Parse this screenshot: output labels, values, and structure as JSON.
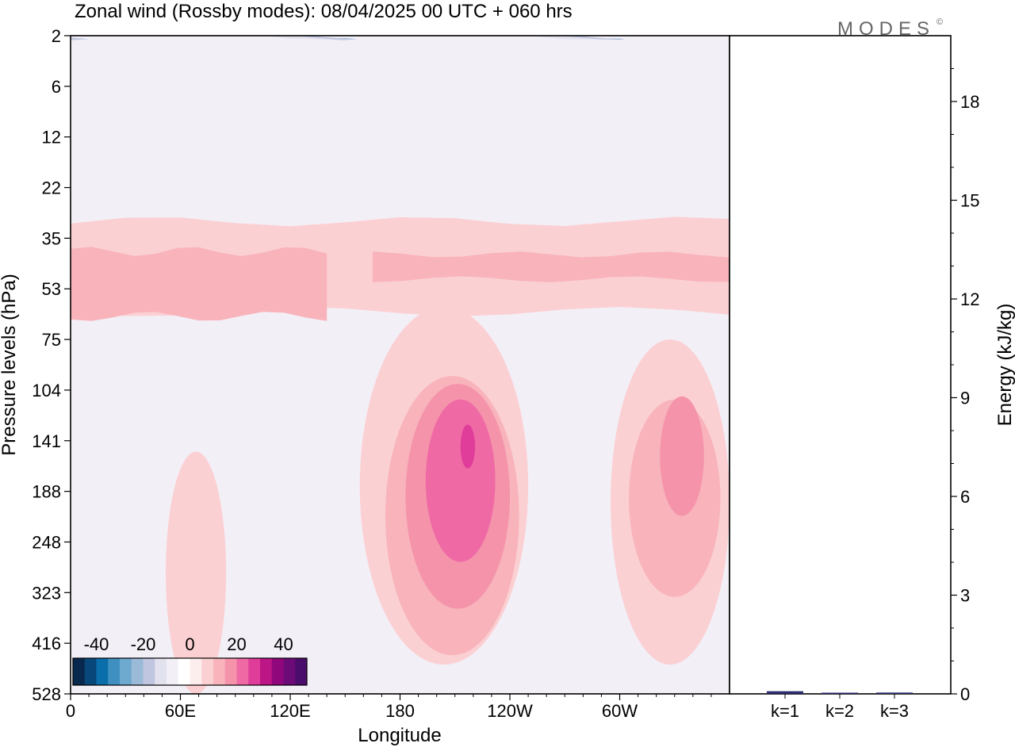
{
  "chart_data": [
    {
      "type": "heatmap",
      "title": "Zonal wind (Rossby modes):  08/04/2025  00 UTC  + 060 hrs",
      "xlabel": "Longitude",
      "ylabel": "Pressure levels (hPa)",
      "x_ticks": [
        "0",
        "60E",
        "120E",
        "180",
        "120W",
        "60W"
      ],
      "x_tick_lon": [
        0,
        60,
        120,
        180,
        240,
        300
      ],
      "x_range_lon": [
        0,
        360
      ],
      "y_ticks": [
        "2",
        "6",
        "12",
        "22",
        "35",
        "53",
        "75",
        "104",
        "141",
        "188",
        "248",
        "323",
        "416",
        "528"
      ],
      "y_scale": "ordered pressure levels (top = 2 hPa, bottom = 528 hPa)",
      "colorbar": {
        "tick_labels": [
          "-40",
          "-20",
          "0",
          "20",
          "40"
        ],
        "tick_values": [
          -40,
          -20,
          0,
          20,
          40
        ],
        "range": [
          -50,
          50
        ],
        "step": 5,
        "colors": [
          "#08294d",
          "#08477a",
          "#0a6eaa",
          "#3f8fc0",
          "#6ea9d0",
          "#9bbad7",
          "#c0c6df",
          "#e2e1ee",
          "#f3eff7",
          "#ffffff",
          "#fdeeee",
          "#fbd0d3",
          "#f8b3bb",
          "#f593ab",
          "#ef6aa5",
          "#df3d99",
          "#bc1586",
          "#90077c",
          "#6c0a78",
          "#4b0d6b"
        ]
      },
      "regions": [
        {
          "level": -45,
          "shape": "band",
          "lon": [
            0,
            360
          ],
          "plev": [
            4.8,
            7.6
          ]
        },
        {
          "level": -40,
          "shape": "band",
          "lon": [
            0,
            360
          ],
          "plev": [
            3.7,
            10.5
          ]
        },
        {
          "level": -35,
          "shape": "band",
          "lon": [
            0,
            360
          ],
          "plev": [
            3.2,
            13.4
          ]
        },
        {
          "level": -30,
          "shape": "band",
          "lon": [
            0,
            360
          ],
          "plev": [
            2.8,
            15.5
          ]
        },
        {
          "level": -25,
          "shape": "band",
          "lon": [
            0,
            360
          ],
          "plev": [
            2.5,
            18
          ]
        },
        {
          "level": -20,
          "shape": "band",
          "lon": [
            0,
            360
          ],
          "plev": [
            2.3,
            20
          ]
        },
        {
          "level": -15,
          "shape": "band",
          "lon": [
            0,
            360
          ],
          "plev": [
            2.15,
            22
          ]
        },
        {
          "level": -10,
          "shape": "band",
          "lon": [
            0,
            360
          ],
          "plev": [
            2.05,
            24.5
          ]
        },
        {
          "level": -5,
          "shape": "band",
          "lon": [
            0,
            360
          ],
          "plev": [
            2.0,
            27
          ]
        },
        {
          "level": 5,
          "shape": "band",
          "lon": [
            0,
            360
          ],
          "plev": [
            30,
            62
          ]
        },
        {
          "level": 10,
          "shape": "band",
          "lon": [
            0,
            140
          ],
          "plev": [
            39,
            64
          ]
        },
        {
          "level": 10,
          "shape": "band",
          "lon": [
            165,
            360
          ],
          "plev": [
            40,
            49
          ]
        },
        {
          "level": -5,
          "shape": "blob",
          "lon": [
            95,
            140
          ],
          "plev": [
            108,
            235
          ]
        },
        {
          "level": -5,
          "shape": "blob",
          "lon": [
            12,
            70
          ],
          "plev": [
            90,
            112
          ]
        },
        {
          "level": -5,
          "shape": "blob",
          "lon": [
            220,
            275
          ],
          "plev": [
            82,
            100
          ]
        },
        {
          "level": -5,
          "shape": "blob",
          "lon": [
            0,
            30
          ],
          "plev": [
            330,
            528
          ]
        },
        {
          "level": -5,
          "shape": "blob",
          "lon": [
            240,
            270
          ],
          "plev": [
            430,
            528
          ]
        },
        {
          "level": -5,
          "shape": "blob",
          "lon": [
            345,
            360
          ],
          "plev": [
            410,
            528
          ]
        },
        {
          "level": 5,
          "shape": "blob",
          "lon": [
            158,
            250
          ],
          "plev": [
            60,
            460
          ]
        },
        {
          "level": 5,
          "shape": "blob",
          "lon": [
            295,
            360
          ],
          "plev": [
            75,
            460
          ]
        },
        {
          "level": 5,
          "shape": "blob",
          "lon": [
            52,
            85
          ],
          "plev": [
            150,
            528
          ]
        },
        {
          "level": 10,
          "shape": "blob",
          "lon": [
            172,
            245
          ],
          "plev": [
            95,
            440
          ]
        },
        {
          "level": 10,
          "shape": "blob",
          "lon": [
            305,
            355
          ],
          "plev": [
            110,
            330
          ]
        },
        {
          "level": 15,
          "shape": "blob",
          "lon": [
            183,
            240
          ],
          "plev": [
            100,
            350
          ]
        },
        {
          "level": 15,
          "shape": "blob",
          "lon": [
            322,
            346
          ],
          "plev": [
            108,
            215
          ]
        },
        {
          "level": 20,
          "shape": "blob",
          "lon": [
            194,
            232
          ],
          "plev": [
            110,
            275
          ]
        },
        {
          "level": 25,
          "shape": "blob",
          "lon": [
            213,
            221
          ],
          "plev": [
            128,
            165
          ]
        }
      ]
    },
    {
      "type": "bar",
      "categories": [
        "k=1",
        "k=2",
        "k=3"
      ],
      "values": [
        0.08,
        0.02,
        0.04
      ],
      "ylabel": "Energy (kJ/kg)",
      "ylim": [
        0,
        20
      ],
      "y_ticks": [
        0,
        3,
        6,
        9,
        12,
        15,
        18
      ],
      "bar_color": "#2b2b6e"
    }
  ],
  "logo": {
    "text": "MODES",
    "mark": "©"
  }
}
